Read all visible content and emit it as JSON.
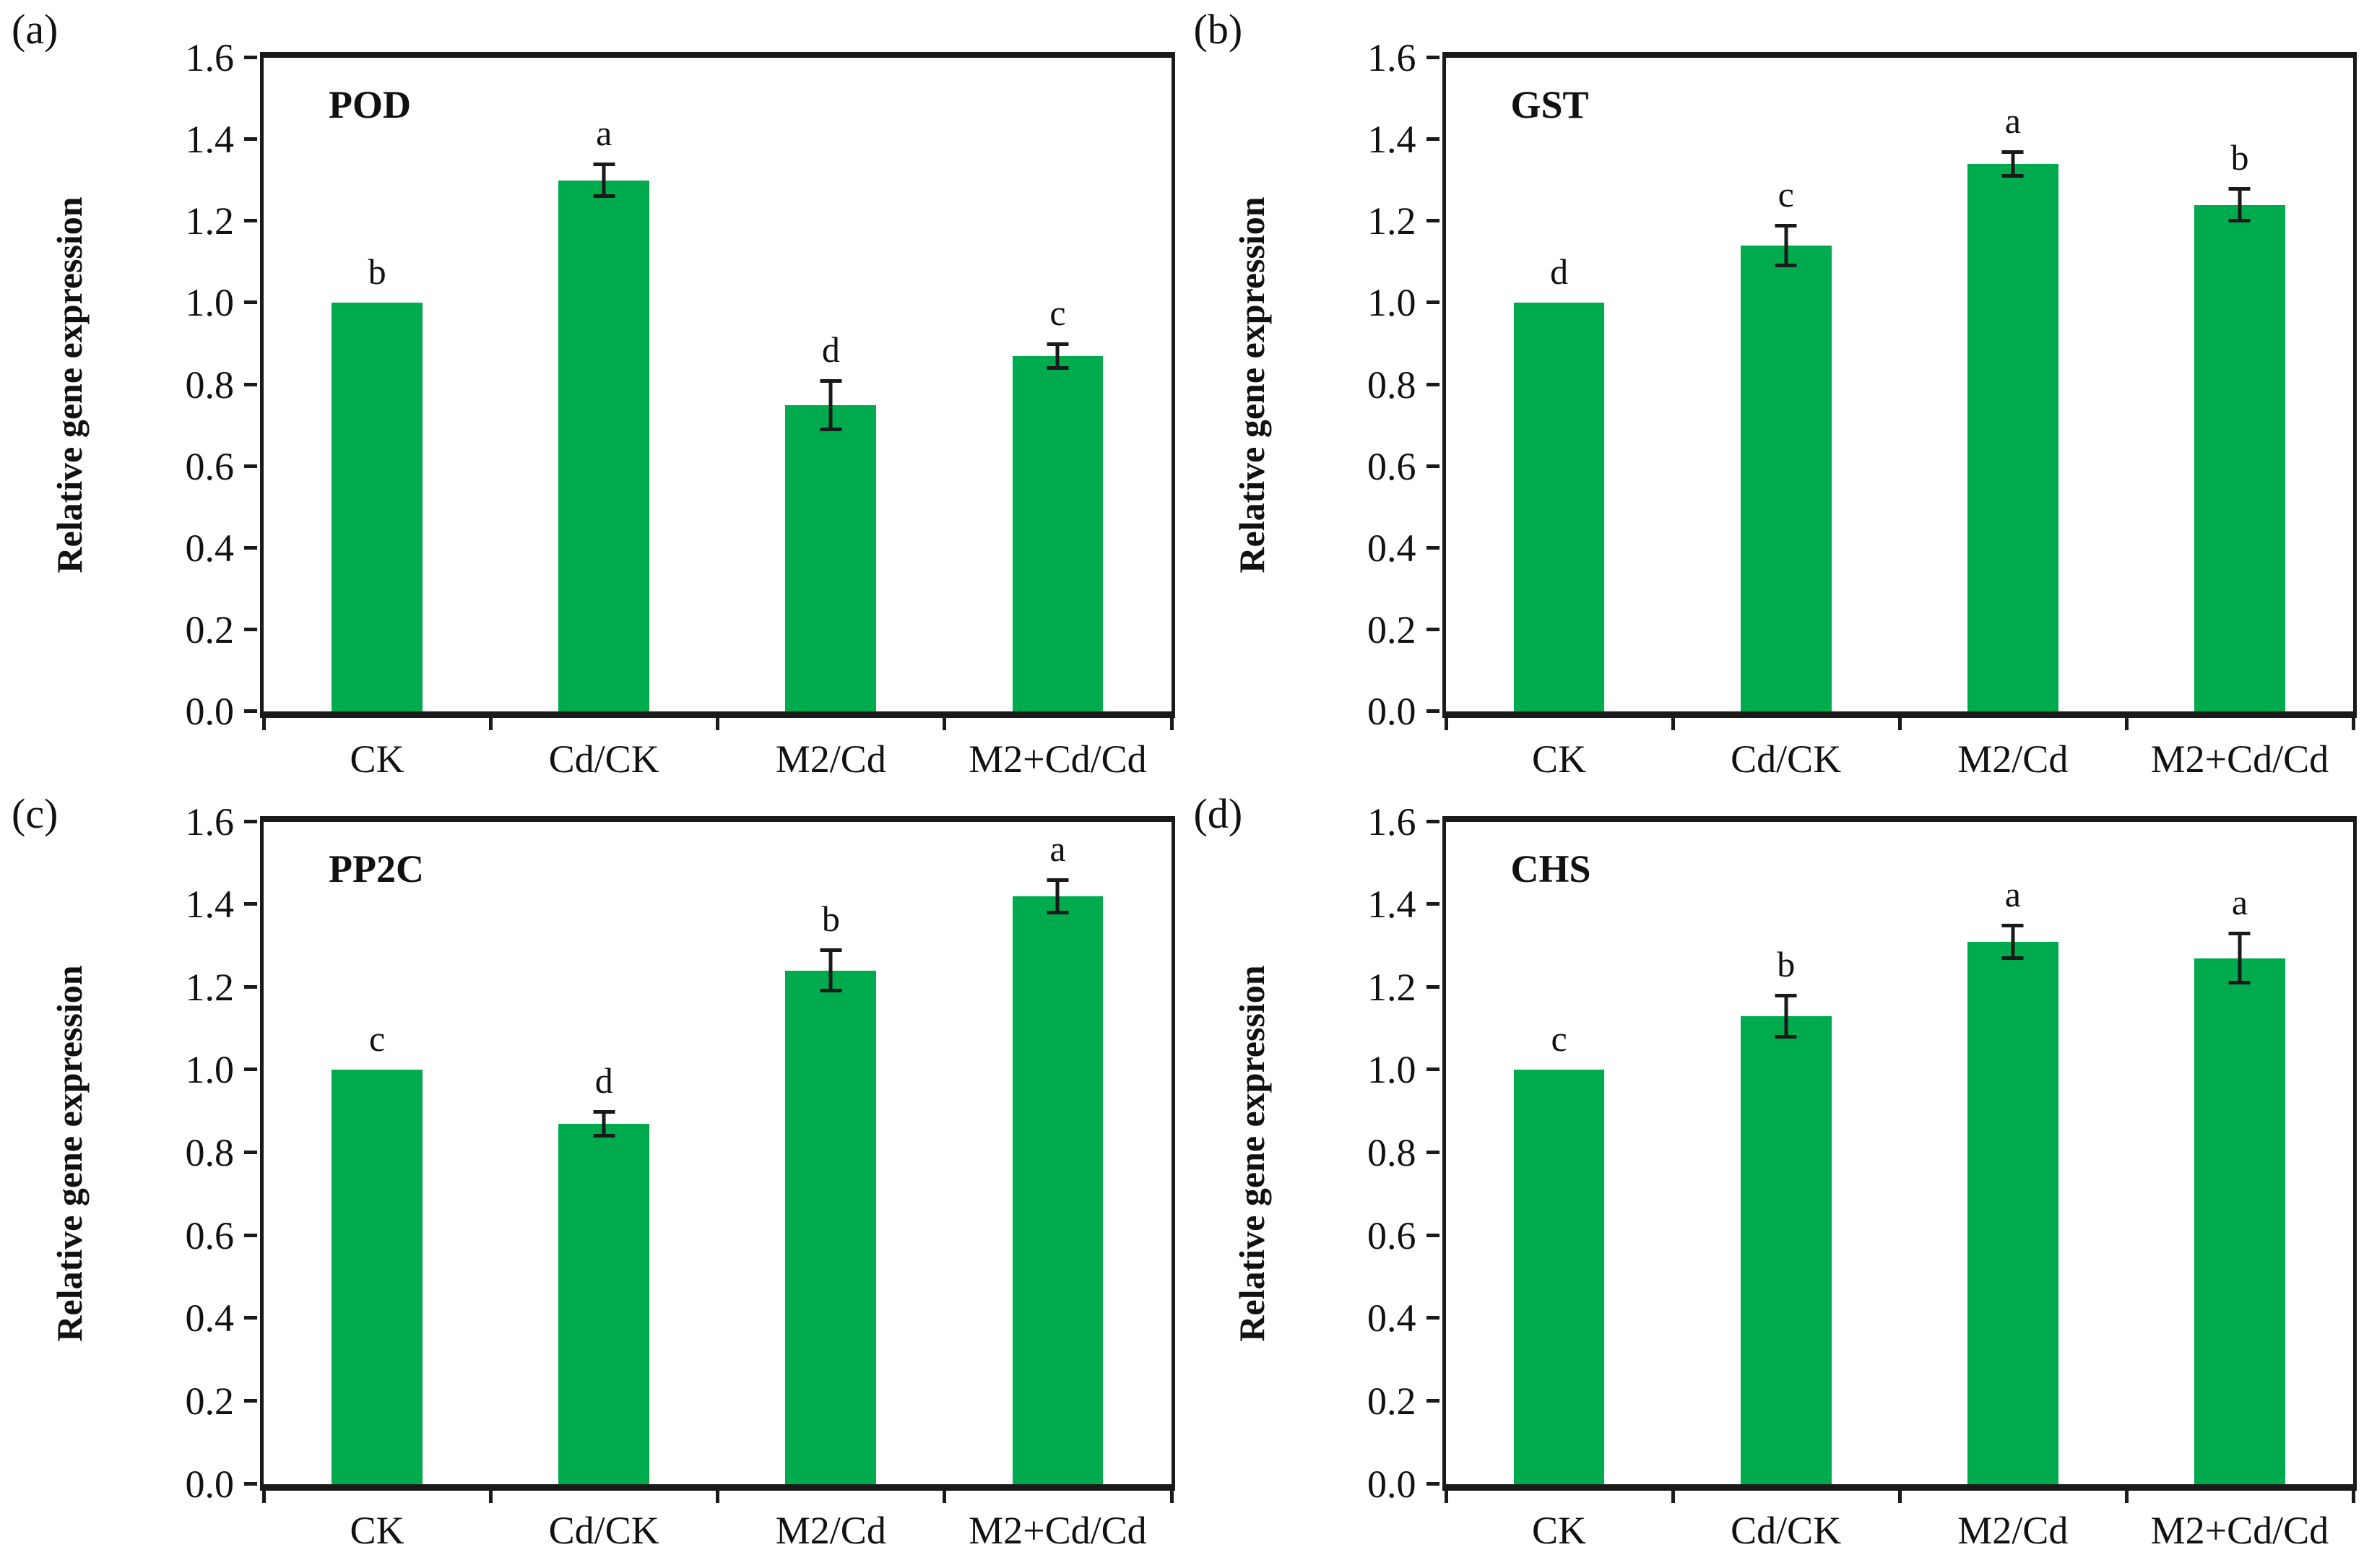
{
  "figure": {
    "bar_color": "#00AB4E",
    "axis_color": "#1A1A1A",
    "ylabel": "Relative gene expression",
    "ytick_labels": [
      "0.0",
      "0.2",
      "0.4",
      "0.6",
      "0.8",
      "1.0",
      "1.2",
      "1.4",
      "1.6"
    ],
    "categories": [
      "CK",
      "Cd/CK",
      "M2/Cd",
      "M2+Cd/Cd"
    ]
  },
  "chart_data": [
    {
      "type": "bar",
      "panel_label": "(a)",
      "title": "POD",
      "ylabel": "Relative gene expression",
      "categories": [
        "CK",
        "Cd/CK",
        "M2/Cd",
        "M2+Cd/Cd"
      ],
      "values": [
        1.0,
        1.3,
        0.75,
        0.87
      ],
      "errors": [
        0,
        0.04,
        0.06,
        0.03
      ],
      "sig_letters": [
        "b",
        "a",
        "d",
        "c"
      ],
      "ylim": [
        0,
        1.6
      ],
      "ytick_step": 0.2,
      "grid": false,
      "legend": "none"
    },
    {
      "type": "bar",
      "panel_label": "(b)",
      "title": "GST",
      "ylabel": "Relative gene expression",
      "categories": [
        "CK",
        "Cd/CK",
        "M2/Cd",
        "M2+Cd/Cd"
      ],
      "values": [
        1.0,
        1.14,
        1.34,
        1.24
      ],
      "errors": [
        0,
        0.05,
        0.03,
        0.04
      ],
      "sig_letters": [
        "d",
        "c",
        "a",
        "b"
      ],
      "ylim": [
        0,
        1.6
      ],
      "ytick_step": 0.2,
      "grid": false,
      "legend": "none"
    },
    {
      "type": "bar",
      "panel_label": "(c)",
      "title": "PP2C",
      "ylabel": "Relative gene expression",
      "categories": [
        "CK",
        "Cd/CK",
        "M2/Cd",
        "M2+Cd/Cd"
      ],
      "values": [
        1.0,
        0.87,
        1.24,
        1.42
      ],
      "errors": [
        0,
        0.03,
        0.05,
        0.04
      ],
      "sig_letters": [
        "c",
        "d",
        "b",
        "a"
      ],
      "ylim": [
        0,
        1.6
      ],
      "ytick_step": 0.2,
      "grid": false,
      "legend": "none"
    },
    {
      "type": "bar",
      "panel_label": "(d)",
      "title": "CHS",
      "ylabel": "Relative gene expression",
      "categories": [
        "CK",
        "Cd/CK",
        "M2/Cd",
        "M2+Cd/Cd"
      ],
      "values": [
        1.0,
        1.13,
        1.31,
        1.27
      ],
      "errors": [
        0,
        0.05,
        0.04,
        0.06
      ],
      "sig_letters": [
        "c",
        "b",
        "a",
        "a"
      ],
      "ylim": [
        0,
        1.6
      ],
      "ytick_step": 0.2,
      "grid": false,
      "legend": "none"
    }
  ]
}
